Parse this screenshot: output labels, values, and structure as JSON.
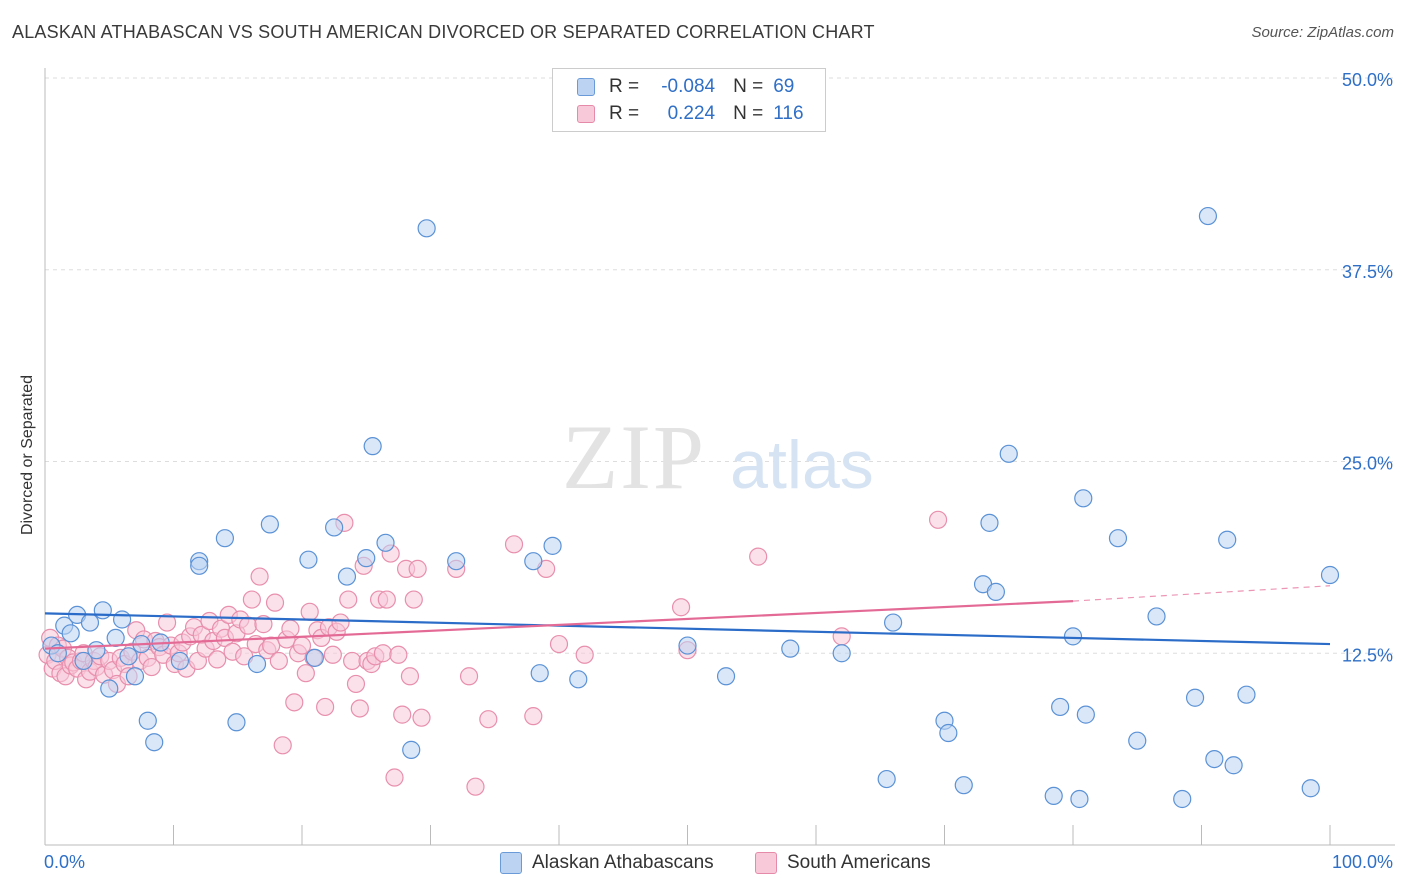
{
  "header": {
    "title": "ALASKAN ATHABASCAN VS SOUTH AMERICAN DIVORCED OR SEPARATED CORRELATION CHART",
    "source": "Source: ZipAtlas.com"
  },
  "watermark": {
    "zip": "ZIP",
    "atlas": "atlas"
  },
  "legend_top": {
    "rows": [
      {
        "r_key": "R =",
        "r_val": "-0.084",
        "n_key": "N =",
        "n_val": "69",
        "color": "#6a9bd8"
      },
      {
        "r_key": "R =",
        "r_val": "0.224",
        "n_key": "N =",
        "n_val": "116",
        "color": "#e58aa8"
      }
    ]
  },
  "colors": {
    "blue_fill": "#bcd4f2",
    "blue_stroke": "#5b92d6",
    "blue_line": "#2a6cc8",
    "pink_fill": "#f8c9d8",
    "pink_stroke": "#e88fad",
    "pink_line": "#e46a96",
    "tick_label": "#2f6fc6",
    "grid": "#dddddd"
  },
  "chart_data": {
    "type": "scatter",
    "title": "ALASKAN ATHABASCAN VS SOUTH AMERICAN DIVORCED OR SEPARATED CORRELATION CHART",
    "xlabel": "",
    "ylabel": "Divorced or Separated",
    "xlim": [
      0,
      100
    ],
    "ylim": [
      0,
      50
    ],
    "x_tick_labels": [
      "0.0%",
      "100.0%"
    ],
    "y_ticks": [
      12.5,
      25.0,
      37.5,
      50.0
    ],
    "y_tick_labels": [
      "12.5%",
      "25.0%",
      "37.5%",
      "50.0%"
    ],
    "grid": true,
    "legend_position": "bottom",
    "series": [
      {
        "name": "Alaskan Athabascans",
        "R": -0.084,
        "N": 69,
        "trend": {
          "x": [
            0,
            100
          ],
          "y": [
            15.1,
            13.1
          ]
        },
        "points": [
          [
            0.5,
            13.0
          ],
          [
            1.0,
            12.5
          ],
          [
            1.5,
            14.3
          ],
          [
            2.0,
            13.8
          ],
          [
            2.5,
            15.0
          ],
          [
            3.0,
            12.0
          ],
          [
            3.5,
            14.5
          ],
          [
            4.0,
            12.7
          ],
          [
            4.5,
            15.3
          ],
          [
            5.0,
            10.2
          ],
          [
            5.5,
            13.5
          ],
          [
            6.0,
            14.7
          ],
          [
            6.5,
            12.3
          ],
          [
            7.0,
            11.0
          ],
          [
            7.5,
            13.1
          ],
          [
            8.0,
            8.1
          ],
          [
            8.5,
            6.7
          ],
          [
            9.0,
            13.2
          ],
          [
            10.5,
            12.0
          ],
          [
            12.0,
            18.5
          ],
          [
            12.0,
            18.2
          ],
          [
            14.0,
            20.0
          ],
          [
            14.9,
            8.0
          ],
          [
            16.5,
            11.8
          ],
          [
            17.5,
            20.9
          ],
          [
            20.5,
            18.6
          ],
          [
            21.0,
            12.2
          ],
          [
            22.5,
            20.7
          ],
          [
            23.5,
            17.5
          ],
          [
            25.5,
            26.0
          ],
          [
            25.0,
            18.7
          ],
          [
            26.5,
            19.7
          ],
          [
            28.5,
            6.2
          ],
          [
            29.7,
            40.2
          ],
          [
            32.0,
            18.5
          ],
          [
            38.0,
            18.5
          ],
          [
            38.5,
            11.2
          ],
          [
            39.5,
            19.5
          ],
          [
            41.5,
            10.8
          ],
          [
            50.0,
            13.0
          ],
          [
            53.0,
            11.0
          ],
          [
            58.0,
            12.8
          ],
          [
            62.0,
            12.5
          ],
          [
            65.5,
            4.3
          ],
          [
            66.0,
            14.5
          ],
          [
            70.0,
            8.1
          ],
          [
            70.3,
            7.3
          ],
          [
            71.5,
            3.9
          ],
          [
            73.0,
            17.0
          ],
          [
            73.5,
            21.0
          ],
          [
            74.0,
            16.5
          ],
          [
            75.0,
            25.5
          ],
          [
            78.5,
            3.2
          ],
          [
            79.0,
            9.0
          ],
          [
            80.0,
            13.6
          ],
          [
            80.5,
            3.0
          ],
          [
            80.8,
            22.6
          ],
          [
            81.0,
            8.5
          ],
          [
            83.5,
            20.0
          ],
          [
            85.0,
            6.8
          ],
          [
            86.5,
            14.9
          ],
          [
            88.5,
            3.0
          ],
          [
            89.5,
            9.6
          ],
          [
            90.5,
            41.0
          ],
          [
            91.0,
            5.6
          ],
          [
            92.0,
            19.9
          ],
          [
            92.5,
            5.2
          ],
          [
            93.5,
            9.8
          ],
          [
            98.5,
            3.7
          ],
          [
            100.0,
            17.6
          ]
        ]
      },
      {
        "name": "South Americans",
        "R": 0.224,
        "N": 116,
        "trend": {
          "x": [
            0,
            80,
            100
          ],
          "y": [
            12.8,
            15.9,
            16.9
          ],
          "dashed_from": 80
        },
        "points": [
          [
            0.2,
            12.4
          ],
          [
            0.4,
            13.5
          ],
          [
            0.6,
            11.5
          ],
          [
            0.8,
            12.0
          ],
          [
            1.0,
            13.0
          ],
          [
            1.2,
            11.2
          ],
          [
            1.4,
            12.8
          ],
          [
            1.6,
            11.0
          ],
          [
            1.8,
            12.2
          ],
          [
            2.0,
            11.7
          ],
          [
            2.2,
            11.9
          ],
          [
            2.5,
            11.5
          ],
          [
            2.8,
            12.0
          ],
          [
            3.0,
            12.5
          ],
          [
            3.2,
            10.8
          ],
          [
            3.5,
            11.3
          ],
          [
            3.8,
            12.0
          ],
          [
            4.0,
            11.6
          ],
          [
            4.3,
            12.3
          ],
          [
            4.6,
            11.1
          ],
          [
            5.0,
            12.0
          ],
          [
            5.3,
            11.4
          ],
          [
            5.6,
            10.5
          ],
          [
            5.9,
            12.2
          ],
          [
            6.2,
            11.8
          ],
          [
            6.5,
            11.0
          ],
          [
            6.8,
            12.6
          ],
          [
            7.1,
            14.0
          ],
          [
            7.4,
            12.0
          ],
          [
            7.7,
            13.4
          ],
          [
            8.0,
            12.2
          ],
          [
            8.3,
            11.6
          ],
          [
            8.6,
            13.3
          ],
          [
            8.9,
            12.9
          ],
          [
            9.2,
            12.4
          ],
          [
            9.5,
            14.5
          ],
          [
            9.8,
            13.0
          ],
          [
            10.1,
            11.8
          ],
          [
            10.4,
            12.5
          ],
          [
            10.7,
            13.2
          ],
          [
            11.0,
            11.5
          ],
          [
            11.3,
            13.6
          ],
          [
            11.6,
            14.2
          ],
          [
            11.9,
            12.0
          ],
          [
            12.2,
            13.7
          ],
          [
            12.5,
            12.8
          ],
          [
            12.8,
            14.6
          ],
          [
            13.1,
            13.3
          ],
          [
            13.4,
            12.1
          ],
          [
            13.7,
            14.1
          ],
          [
            14.0,
            13.5
          ],
          [
            14.3,
            15.0
          ],
          [
            14.6,
            12.6
          ],
          [
            14.9,
            13.8
          ],
          [
            15.2,
            14.7
          ],
          [
            15.5,
            12.3
          ],
          [
            15.8,
            14.3
          ],
          [
            16.1,
            16.0
          ],
          [
            16.4,
            13.1
          ],
          [
            16.7,
            17.5
          ],
          [
            17.0,
            14.4
          ],
          [
            17.3,
            12.7
          ],
          [
            17.6,
            13.0
          ],
          [
            17.9,
            15.8
          ],
          [
            18.2,
            12.0
          ],
          [
            18.5,
            6.5
          ],
          [
            18.8,
            13.4
          ],
          [
            19.1,
            14.1
          ],
          [
            19.4,
            9.3
          ],
          [
            19.7,
            12.5
          ],
          [
            20.0,
            13.0
          ],
          [
            20.3,
            11.2
          ],
          [
            20.6,
            15.2
          ],
          [
            20.9,
            12.2
          ],
          [
            21.2,
            14.0
          ],
          [
            21.5,
            13.5
          ],
          [
            21.8,
            9.0
          ],
          [
            22.1,
            14.2
          ],
          [
            22.4,
            12.4
          ],
          [
            22.7,
            13.9
          ],
          [
            23.0,
            14.5
          ],
          [
            23.3,
            21.0
          ],
          [
            23.6,
            16.0
          ],
          [
            23.9,
            12.0
          ],
          [
            24.2,
            10.5
          ],
          [
            24.5,
            8.9
          ],
          [
            24.8,
            18.2
          ],
          [
            25.1,
            12.0
          ],
          [
            25.4,
            11.8
          ],
          [
            25.7,
            12.3
          ],
          [
            26.0,
            16.0
          ],
          [
            26.3,
            12.5
          ],
          [
            26.6,
            16.0
          ],
          [
            26.9,
            19.0
          ],
          [
            27.2,
            4.4
          ],
          [
            27.5,
            12.4
          ],
          [
            27.8,
            8.5
          ],
          [
            28.1,
            18.0
          ],
          [
            28.4,
            11.0
          ],
          [
            28.7,
            16.0
          ],
          [
            29.0,
            18.0
          ],
          [
            29.3,
            8.3
          ],
          [
            32.0,
            18.0
          ],
          [
            33.0,
            11.0
          ],
          [
            33.5,
            3.8
          ],
          [
            34.5,
            8.2
          ],
          [
            36.5,
            19.6
          ],
          [
            38.0,
            8.4
          ],
          [
            39.0,
            18.0
          ],
          [
            40.0,
            13.1
          ],
          [
            42.0,
            12.4
          ],
          [
            49.5,
            15.5
          ],
          [
            50.0,
            12.7
          ],
          [
            55.5,
            18.8
          ],
          [
            62.0,
            13.6
          ],
          [
            69.5,
            21.2
          ]
        ]
      }
    ]
  }
}
